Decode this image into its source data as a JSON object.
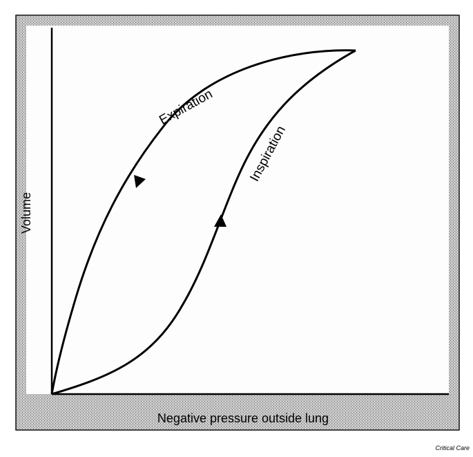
{
  "diagram": {
    "y_axis_label": "Volume",
    "x_axis_label": "Negative pressure outside lung",
    "curves": [
      {
        "label": "Expiration"
      },
      {
        "label": "Inspiration"
      }
    ]
  },
  "credit": "Critical Care"
}
